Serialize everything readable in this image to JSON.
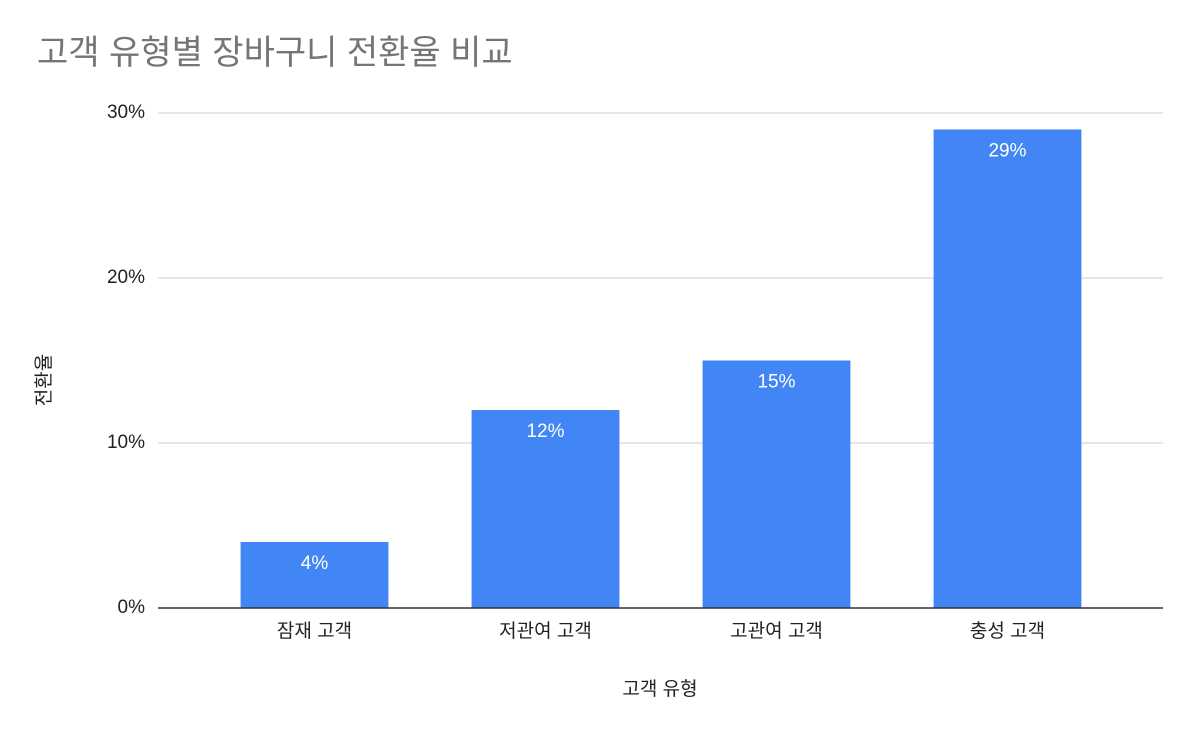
{
  "chart_data": {
    "type": "bar",
    "title": "고객 유형별 장바구니 전환율 비교",
    "x_label": "고객 유형",
    "y_label": "전환율",
    "categories": [
      "잠재 고객",
      "저관여 고객",
      "고관여 고객",
      "충성 고객"
    ],
    "values": [
      4,
      12,
      15,
      29
    ],
    "value_labels": [
      "4%",
      "12%",
      "15%",
      "29%"
    ],
    "color": "#4285f4",
    "ylim": [
      0,
      30
    ],
    "yticks": [
      {
        "value": 0,
        "label": "0%"
      },
      {
        "value": 10,
        "label": "10%"
      },
      {
        "value": 20,
        "label": "20%"
      },
      {
        "value": 30,
        "label": "30%"
      }
    ],
    "grid": true
  }
}
